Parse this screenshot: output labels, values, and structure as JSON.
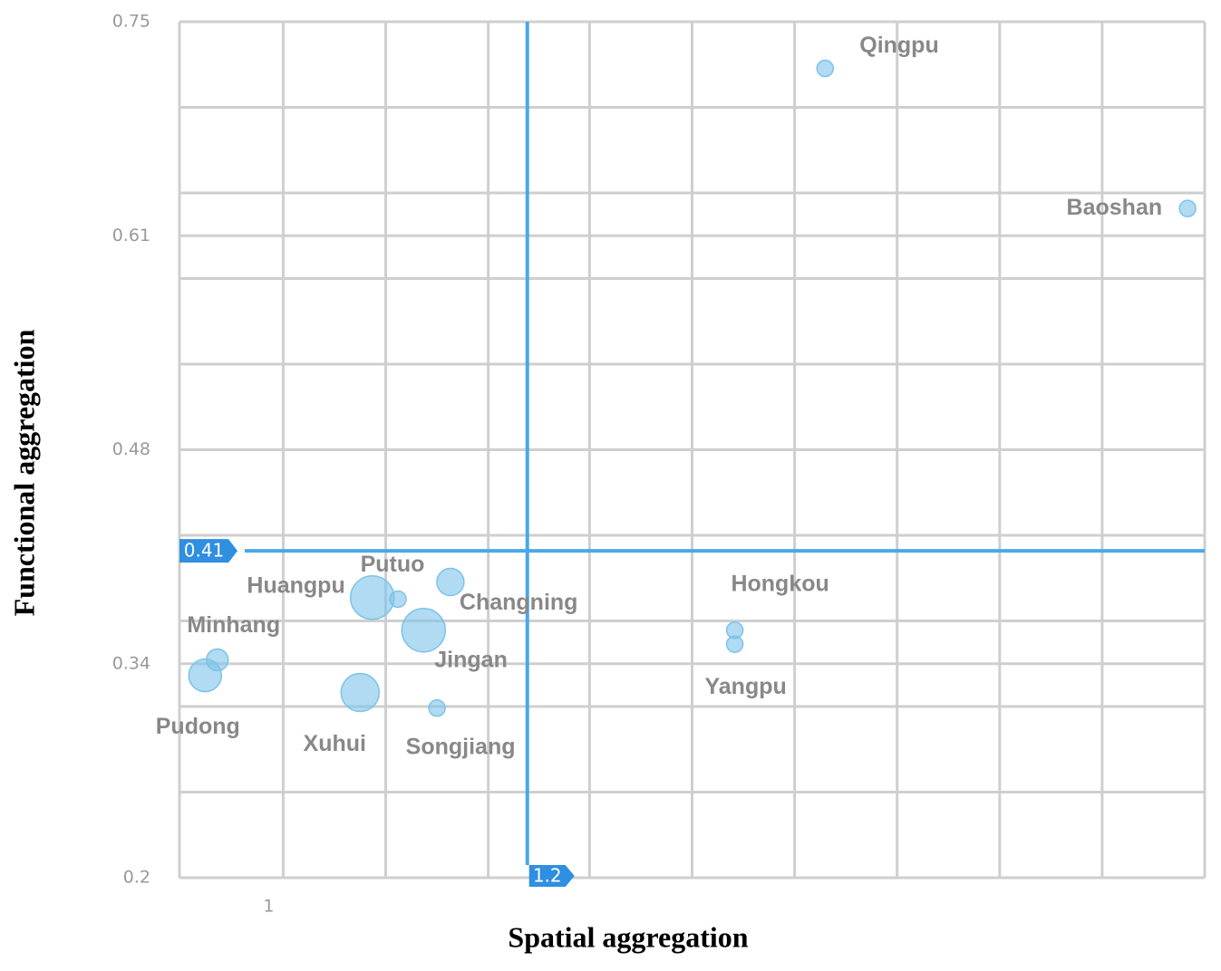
{
  "chart_data": {
    "type": "scatter",
    "x_label": "Spatial aggregation",
    "y_label": "Functional aggregation",
    "labels": [
      "Qingpu",
      "Baoshan",
      "Huangpu",
      "Putuo",
      "Changning",
      "Jingan",
      "Songjiang",
      "Xuhui",
      "Minhang",
      "Pudong",
      "Hongkou",
      "Yangpu"
    ],
    "x": [
      1.444,
      1.741,
      1.073,
      1.094,
      1.137,
      1.115,
      1.126,
      1.063,
      0.946,
      0.936,
      1.37,
      1.37
    ],
    "y": [
      0.72,
      0.63,
      0.38,
      0.379,
      0.39,
      0.359,
      0.309,
      0.319,
      0.34,
      0.33,
      0.359,
      0.35
    ],
    "sizes": [
      9,
      9,
      24,
      9,
      15,
      24,
      9,
      21,
      12,
      18,
      9,
      9
    ],
    "color": "#7cc3ea",
    "xlim": [
      0.915,
      1.755
    ],
    "ylim": [
      0.2,
      0.75
    ],
    "xticks": [
      1
    ],
    "yticks": [
      0.2,
      {
        "value": 0.3375,
        "label": "0.34"
      },
      {
        "value": 0.475,
        "label": "0.48"
      },
      {
        "value": 0.6125,
        "label": "0.61"
      },
      0.75
    ],
    "xgrid": [
      1.0,
      1.084,
      1.168,
      1.251,
      1.335,
      1.419,
      1.503,
      1.587,
      1.671,
      1.755
    ],
    "ygrid": [
      0.255,
      0.31,
      0.365,
      0.42,
      0.53,
      0.585,
      0.64,
      0.695
    ],
    "grid": true,
    "x_ref": 1.2,
    "y_ref": 0.41,
    "ref_color": "#4aa8e8"
  }
}
